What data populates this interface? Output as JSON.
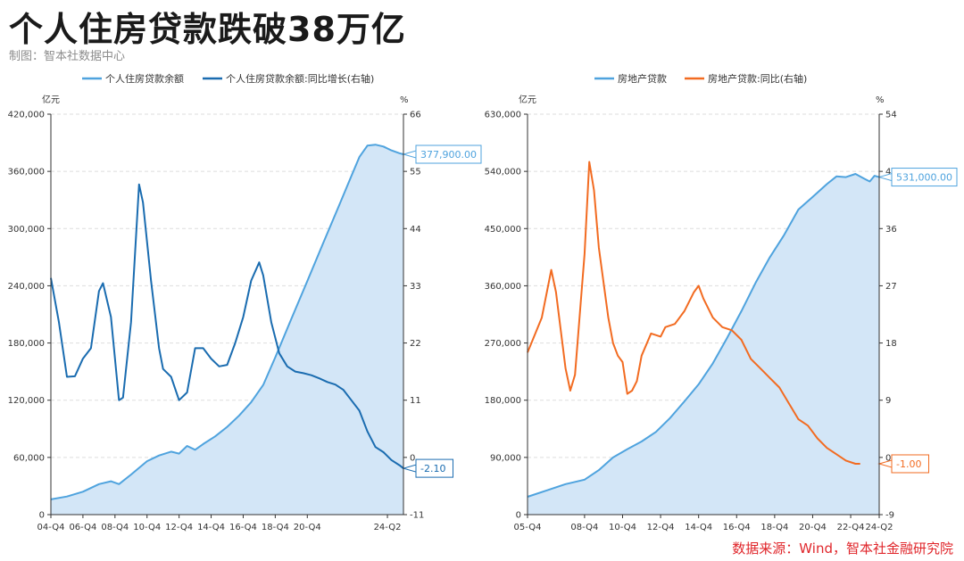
{
  "page": {
    "title": "个人住房贷款跌破38万亿",
    "subtitle": "制图：智本社数据中心",
    "source": "数据来源：Wind，智本社金融研究院"
  },
  "colors": {
    "light_blue": "#4fa3de",
    "dark_blue": "#1a6cb0",
    "orange": "#f26b21",
    "area_fill": "#d3e6f7",
    "grid": "#dddddd",
    "axis": "#333333"
  },
  "chart_data": [
    {
      "type": "line",
      "title": "",
      "legend_placement": "top-center",
      "left_unit": "亿元",
      "right_unit": "%",
      "y_left_range": [
        0,
        420000
      ],
      "y_left_ticks": [
        "0",
        "60,000",
        "120,000",
        "180,000",
        "240,000",
        "300,000",
        "360,000",
        "420,000"
      ],
      "y_right_range": [
        -11,
        66
      ],
      "y_right_ticks": [
        "-11",
        "0",
        "11",
        "22",
        "33",
        "44",
        "55",
        "66"
      ],
      "x_tick_labels": [
        "04-Q4",
        "06-Q4",
        "08-Q4",
        "10-Q4",
        "12-Q4",
        "14-Q4",
        "16-Q4",
        "18-Q4",
        "20-Q4",
        "24-Q2"
      ],
      "series": [
        {
          "name": "个人住房贷款余额",
          "axis": "left",
          "style": "area",
          "color": "#4fa3de",
          "points": [
            [
              0,
              16000
            ],
            [
              4,
              19000
            ],
            [
              8,
              24000
            ],
            [
              12,
              32000
            ],
            [
              15,
              35000
            ],
            [
              17,
              32000
            ],
            [
              20,
              42000
            ],
            [
              24,
              56000
            ],
            [
              27,
              62000
            ],
            [
              30,
              66000
            ],
            [
              32,
              64000
            ],
            [
              34,
              72000
            ],
            [
              36,
              68000
            ],
            [
              38,
              74000
            ],
            [
              41,
              82000
            ],
            [
              44,
              92000
            ],
            [
              47,
              104000
            ],
            [
              50,
              118000
            ],
            [
              53,
              136000
            ],
            [
              56,
              165000
            ],
            [
              60,
              205000
            ],
            [
              64,
              245000
            ],
            [
              68,
              285000
            ],
            [
              72,
              325000
            ],
            [
              75,
              355000
            ],
            [
              77,
              375000
            ],
            [
              79,
              387000
            ],
            [
              81,
              388000
            ],
            [
              83,
              386000
            ],
            [
              85,
              382000
            ],
            [
              87,
              379000
            ],
            [
              88,
              377900
            ]
          ],
          "end_label": "377,900.00"
        },
        {
          "name": "个人住房贷款余额:同比增长(右轴)",
          "axis": "right",
          "style": "line",
          "color": "#1a6cb0",
          "points": [
            [
              0,
              34.5
            ],
            [
              2,
              26
            ],
            [
              4,
              15.5
            ],
            [
              6,
              15.6
            ],
            [
              8,
              19
            ],
            [
              10,
              21
            ],
            [
              12,
              32
            ],
            [
              13,
              33.5
            ],
            [
              15,
              27
            ],
            [
              17,
              11
            ],
            [
              18,
              11.5
            ],
            [
              20,
              26
            ],
            [
              22,
              52.5
            ],
            [
              23,
              49
            ],
            [
              25,
              34
            ],
            [
              27,
              21
            ],
            [
              28,
              17
            ],
            [
              30,
              15.5
            ],
            [
              32,
              11
            ],
            [
              34,
              12.5
            ],
            [
              36,
              21
            ],
            [
              38,
              21
            ],
            [
              40,
              19
            ],
            [
              42,
              17.5
            ],
            [
              44,
              17.8
            ],
            [
              46,
              22
            ],
            [
              48,
              27
            ],
            [
              50,
              34
            ],
            [
              52,
              37.5
            ],
            [
              53,
              35
            ],
            [
              55,
              26
            ],
            [
              57,
              20
            ],
            [
              59,
              17.5
            ],
            [
              61,
              16.5
            ],
            [
              63,
              16.2
            ],
            [
              65,
              15.8
            ],
            [
              67,
              15.2
            ],
            [
              69,
              14.5
            ],
            [
              71,
              14
            ],
            [
              73,
              13
            ],
            [
              75,
              11
            ],
            [
              77,
              9
            ],
            [
              79,
              5
            ],
            [
              81,
              2
            ],
            [
              83,
              1
            ],
            [
              85,
              -0.5
            ],
            [
              87,
              -1.5
            ],
            [
              88,
              -2.1
            ]
          ],
          "end_label": "-2.10"
        }
      ]
    },
    {
      "type": "line",
      "title": "",
      "legend_placement": "top-center",
      "left_unit": "亿元",
      "right_unit": "%",
      "y_left_range": [
        0,
        630000
      ],
      "y_left_ticks": [
        "0",
        "90,000",
        "180,000",
        "270,000",
        "360,000",
        "450,000",
        "540,000",
        "630,000"
      ],
      "y_right_range": [
        -9,
        54
      ],
      "y_right_ticks": [
        "-9",
        "0",
        "9",
        "18",
        "27",
        "36",
        "45",
        "54"
      ],
      "x_tick_labels": [
        "05-Q4",
        "08-Q4",
        "10-Q4",
        "12-Q4",
        "14-Q4",
        "16-Q4",
        "18-Q4",
        "20-Q4",
        "22-Q4",
        "24-Q2"
      ],
      "series": [
        {
          "name": "房地产贷款",
          "axis": "left",
          "style": "area",
          "color": "#4fa3de",
          "points": [
            [
              0,
              28000
            ],
            [
              4,
              38000
            ],
            [
              8,
              48000
            ],
            [
              12,
              55000
            ],
            [
              15,
              70000
            ],
            [
              18,
              90000
            ],
            [
              21,
              103000
            ],
            [
              24,
              115000
            ],
            [
              27,
              130000
            ],
            [
              30,
              152000
            ],
            [
              33,
              178000
            ],
            [
              36,
              205000
            ],
            [
              39,
              238000
            ],
            [
              42,
              278000
            ],
            [
              45,
              320000
            ],
            [
              48,
              365000
            ],
            [
              51,
              405000
            ],
            [
              54,
              440000
            ],
            [
              57,
              480000
            ],
            [
              60,
              500000
            ],
            [
              63,
              520000
            ],
            [
              65,
              532000
            ],
            [
              67,
              531000
            ],
            [
              69,
              536000
            ],
            [
              71,
              528000
            ],
            [
              72,
              524000
            ],
            [
              73,
              533000
            ],
            [
              74,
              531000
            ]
          ],
          "end_label": "531,000.00"
        },
        {
          "name": "房地产贷款:同比(右轴)",
          "axis": "right",
          "style": "line",
          "color": "#f26b21",
          "points": [
            [
              0,
              16.5
            ],
            [
              3,
              22
            ],
            [
              5,
              29.5
            ],
            [
              6,
              26
            ],
            [
              8,
              14
            ],
            [
              9,
              10.5
            ],
            [
              10,
              13
            ],
            [
              12,
              32
            ],
            [
              13,
              46.5
            ],
            [
              14,
              42
            ],
            [
              15,
              33
            ],
            [
              17,
              22
            ],
            [
              18,
              18
            ],
            [
              19,
              16
            ],
            [
              20,
              15
            ],
            [
              21,
              10
            ],
            [
              22,
              10.5
            ],
            [
              23,
              12
            ],
            [
              24,
              16
            ],
            [
              26,
              19.5
            ],
            [
              28,
              19
            ],
            [
              29,
              20.5
            ],
            [
              31,
              21
            ],
            [
              33,
              23
            ],
            [
              35,
              26
            ],
            [
              36,
              27
            ],
            [
              37,
              25
            ],
            [
              39,
              22
            ],
            [
              41,
              20.5
            ],
            [
              43,
              20
            ],
            [
              45,
              18.5
            ],
            [
              47,
              15.5
            ],
            [
              49,
              14
            ],
            [
              51,
              12.5
            ],
            [
              53,
              11
            ],
            [
              55,
              8.5
            ],
            [
              57,
              6
            ],
            [
              59,
              5
            ],
            [
              61,
              3
            ],
            [
              63,
              1.5
            ],
            [
              65,
              0.5
            ],
            [
              67,
              -0.5
            ],
            [
              69,
              -1
            ],
            [
              70,
              -1
            ]
          ],
          "end_label": "-1.00"
        }
      ]
    }
  ]
}
